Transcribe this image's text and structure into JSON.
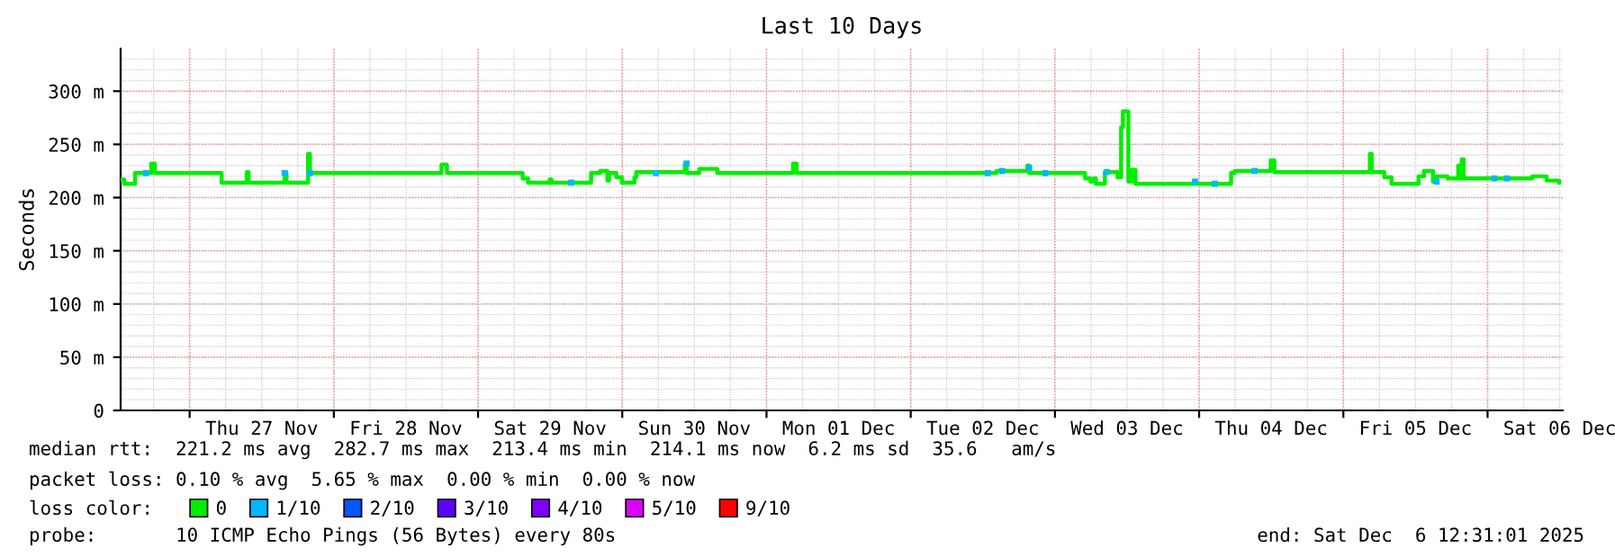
{
  "chart_data": {
    "type": "step",
    "title": "Last 10 Days",
    "ylabel": "Seconds",
    "xlim": [
      "2025-11-26T12:31",
      "2025-12-06T12:31"
    ],
    "xticks": [
      {
        "value": "2025-11-27T00:00",
        "label": null
      },
      {
        "value": "2025-11-27T12:00",
        "label": "Thu 27 Nov"
      },
      {
        "value": "2025-11-28T00:00",
        "label": null
      },
      {
        "value": "2025-11-28T12:00",
        "label": "Fri 28 Nov"
      },
      {
        "value": "2025-11-29T00:00",
        "label": null
      },
      {
        "value": "2025-11-29T12:00",
        "label": "Sat 29 Nov"
      },
      {
        "value": "2025-11-30T00:00",
        "label": null
      },
      {
        "value": "2025-11-30T12:00",
        "label": "Sun 30 Nov"
      },
      {
        "value": "2025-12-01T00:00",
        "label": null
      },
      {
        "value": "2025-12-01T12:00",
        "label": "Mon 01 Dec"
      },
      {
        "value": "2025-12-02T00:00",
        "label": null
      },
      {
        "value": "2025-12-02T12:00",
        "label": "Tue 02 Dec"
      },
      {
        "value": "2025-12-03T00:00",
        "label": null
      },
      {
        "value": "2025-12-03T12:00",
        "label": "Wed 03 Dec"
      },
      {
        "value": "2025-12-04T00:00",
        "label": null
      },
      {
        "value": "2025-12-04T12:00",
        "label": "Thu 04 Dec"
      },
      {
        "value": "2025-12-05T00:00",
        "label": null
      },
      {
        "value": "2025-12-05T12:00",
        "label": "Fri 05 Dec"
      },
      {
        "value": "2025-12-06T00:00",
        "label": null
      },
      {
        "value": "2025-12-06T12:00",
        "label": "Sat 06 Dec"
      }
    ],
    "ylim": [
      0,
      340
    ],
    "yticks": [
      {
        "value": 0,
        "label": "0"
      },
      {
        "value": 50,
        "label": "50 m"
      },
      {
        "value": 100,
        "label": "100 m"
      },
      {
        "value": 150,
        "label": "150 m"
      },
      {
        "value": 200,
        "label": "200 m"
      },
      {
        "value": 250,
        "label": "250 m"
      },
      {
        "value": 300,
        "label": "300 m"
      }
    ],
    "grid": true,
    "legend": "bottom",
    "legend_title": "loss color:",
    "series": [
      {
        "name": "0",
        "color": "#00ee00",
        "x": [
          "2025-11-26T12:31",
          "2025-11-26T13:07",
          "2025-11-26T14:55",
          "2025-11-26T17:37",
          "2025-11-26T18:13",
          "2025-11-27T05:19",
          "2025-11-27T09:31",
          "2025-11-27T09:49",
          "2025-11-27T15:49",
          "2025-11-27T16:07",
          "2025-11-27T19:43",
          "2025-11-27T20:01",
          "2025-11-28T17:55",
          "2025-11-28T18:49",
          "2025-11-29T07:25",
          "2025-11-29T08:19",
          "2025-11-29T11:55",
          "2025-11-29T12:13",
          "2025-11-29T18:49",
          "2025-11-29T20:19",
          "2025-11-29T21:31",
          "2025-11-29T21:49",
          "2025-11-29T23:01",
          "2025-11-29T23:55",
          "2025-11-30T02:01",
          "2025-11-30T02:19",
          "2025-11-30T10:25",
          "2025-11-30T10:43",
          "2025-11-30T12:49",
          "2025-11-30T15:49",
          "2025-12-01T04:25",
          "2025-12-01T05:01",
          "2025-12-02T14:19",
          "2025-12-02T19:25",
          "2025-12-02T19:43",
          "2025-12-03T05:01",
          "2025-12-03T05:55",
          "2025-12-03T06:31",
          "2025-12-03T06:49",
          "2025-12-03T08:19",
          "2025-12-03T10:25",
          "2025-12-03T11:01",
          "2025-12-03T11:19",
          "2025-12-03T12:13",
          "2025-12-03T12:49",
          "2025-12-03T13:25",
          "2025-12-04T05:19",
          "2025-12-04T05:55",
          "2025-12-04T11:55",
          "2025-12-04T12:31",
          "2025-12-05T04:25",
          "2025-12-05T04:43",
          "2025-12-05T06:49",
          "2025-12-05T08:01",
          "2025-12-05T12:31",
          "2025-12-05T13:25",
          "2025-12-05T14:55",
          "2025-12-05T15:31",
          "2025-12-05T17:19",
          "2025-12-05T19:07",
          "2025-12-05T19:25",
          "2025-12-05T19:43",
          "2025-12-05T20:01",
          "2025-12-06T07:25",
          "2025-12-06T09:49",
          "2025-12-06T11:55"
        ],
        "values": [
          217,
          213,
          223,
          232,
          223,
          214,
          224,
          214,
          223,
          214,
          241,
          223,
          231,
          223,
          218,
          214,
          217,
          214,
          223,
          225,
          216,
          223,
          219,
          214,
          219,
          224,
          232,
          223,
          227,
          223,
          232,
          223,
          225,
          230,
          223,
          218,
          215,
          218,
          213,
          224,
          219,
          266,
          281,
          215,
          226,
          213,
          223,
          225,
          235,
          224,
          241,
          224,
          219,
          213,
          220,
          225,
          215,
          220,
          218,
          230,
          218,
          236,
          218,
          220,
          216,
          214
        ]
      },
      {
        "name": "1/10",
        "type": "scatter",
        "color": "#00b8ff",
        "marker": "square",
        "x": [
          "2025-11-26T16:43",
          "2025-11-27T15:49",
          "2025-11-27T20:01",
          "2025-11-29T15:31",
          "2025-11-30T05:37",
          "2025-11-30T10:43",
          "2025-12-02T12:49",
          "2025-12-02T15:13",
          "2025-12-02T19:43",
          "2025-12-02T22:25",
          "2025-12-03T08:37",
          "2025-12-03T23:19",
          "2025-12-04T02:37",
          "2025-12-04T09:13",
          "2025-12-05T15:31",
          "2025-12-06T01:07",
          "2025-12-06T03:13"
        ],
        "values": [
          223,
          223,
          223,
          214,
          223,
          232,
          223,
          225,
          228,
          223,
          224,
          215,
          213,
          225,
          215,
          218,
          218
        ]
      },
      {
        "name": "2/10",
        "type": "scatter",
        "color": "#0059ff",
        "marker": "square"
      },
      {
        "name": "3/10",
        "type": "scatter",
        "color": "#5e00ff",
        "marker": "square"
      },
      {
        "name": "4/10",
        "type": "scatter",
        "color": "#7e00ff",
        "marker": "square"
      },
      {
        "name": "5/10",
        "type": "scatter",
        "color": "#dd00ff",
        "marker": "square"
      },
      {
        "name": "9/10",
        "type": "scatter",
        "color": "#ff0000",
        "marker": "square"
      }
    ],
    "annotations": [
      "median rtt:  221.2 ms avg  282.7 ms max  213.4 ms min  214.1 ms now  6.2 ms sd  35.6   am/s",
      "packet loss: 0.10 % avg  5.65 % max  0.00 % min  0.00 % now",
      "probe:       10 ICMP Echo Pings (56 Bytes) every 80s",
      "end: Sat Dec  6 12:31:01 2025"
    ]
  }
}
